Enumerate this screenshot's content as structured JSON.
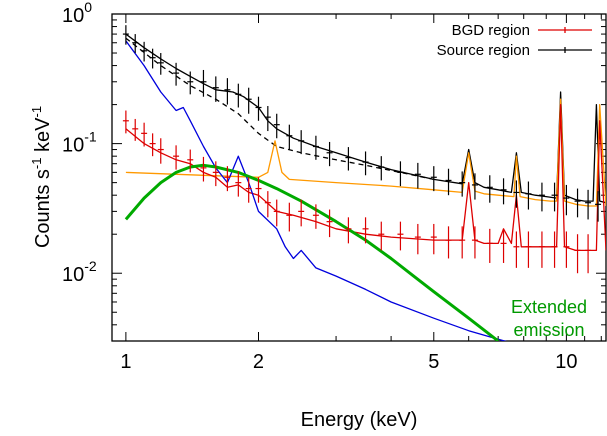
{
  "chart_data": {
    "type": "line",
    "xlabel": "Energy (keV)",
    "ylabel": "Counts s-1 keV-1",
    "xscale": "log",
    "yscale": "log",
    "xlim": [
      0.93,
      12.3
    ],
    "ylim": [
      0.003,
      1.0
    ],
    "x_ticks": [
      {
        "value": 1,
        "label": "1"
      },
      {
        "value": 2,
        "label": "2"
      },
      {
        "value": 5,
        "label": "5"
      },
      {
        "value": 10,
        "label": "10"
      }
    ],
    "y_ticks": [
      {
        "value": 1.0,
        "base": "10",
        "exp": "0"
      },
      {
        "value": 0.1,
        "base": "10",
        "exp": "-1"
      },
      {
        "value": 0.01,
        "base": "10",
        "exp": "-2"
      }
    ],
    "legend": {
      "placement": "top-right",
      "entries": [
        {
          "label": "BGD region",
          "color": "#dd0000"
        },
        {
          "label": "Source region",
          "color": "#000000"
        }
      ]
    },
    "annotation": {
      "lines": [
        "Extended",
        "emission"
      ],
      "color": "#009900"
    },
    "series": [
      {
        "name": "Source region",
        "color": "#000000",
        "style": "points",
        "x": [
          1.0,
          1.05,
          1.1,
          1.15,
          1.2,
          1.3,
          1.4,
          1.5,
          1.6,
          1.7,
          1.8,
          1.9,
          2.0,
          2.1,
          2.2,
          2.35,
          2.5,
          2.7,
          2.9,
          3.2,
          3.5,
          3.8,
          4.2,
          4.6,
          5.0,
          5.4,
          5.8,
          6.2,
          6.7,
          7.2,
          7.7,
          8.2,
          8.8,
          9.4,
          10.0,
          10.6,
          11.2,
          11.8
        ],
        "y": [
          0.7,
          0.6,
          0.52,
          0.46,
          0.42,
          0.35,
          0.3,
          0.3,
          0.27,
          0.26,
          0.24,
          0.22,
          0.19,
          0.16,
          0.14,
          0.115,
          0.105,
          0.095,
          0.085,
          0.078,
          0.072,
          0.066,
          0.06,
          0.058,
          0.055,
          0.052,
          0.05,
          0.048,
          0.046,
          0.044,
          0.042,
          0.041,
          0.04,
          0.04,
          0.038,
          0.036,
          0.035,
          0.034
        ],
        "yerr": [
          0.12,
          0.1,
          0.09,
          0.08,
          0.08,
          0.07,
          0.06,
          0.07,
          0.06,
          0.06,
          0.05,
          0.05,
          0.04,
          0.035,
          0.03,
          0.025,
          0.022,
          0.02,
          0.018,
          0.016,
          0.015,
          0.014,
          0.013,
          0.013,
          0.012,
          0.012,
          0.011,
          0.011,
          0.011,
          0.01,
          0.01,
          0.01,
          0.01,
          0.01,
          0.01,
          0.009,
          0.009,
          0.009
        ]
      },
      {
        "name": "BGD region",
        "color": "#dd0000",
        "style": "points",
        "x": [
          1.0,
          1.05,
          1.1,
          1.15,
          1.2,
          1.3,
          1.4,
          1.5,
          1.6,
          1.7,
          1.8,
          1.9,
          2.0,
          2.1,
          2.2,
          2.35,
          2.5,
          2.7,
          2.9,
          3.2,
          3.5,
          3.8,
          4.2,
          4.6,
          5.0,
          5.4,
          5.8,
          6.2,
          6.7,
          7.2,
          7.7,
          8.2,
          8.8,
          9.4,
          10.0,
          10.6,
          11.2
        ],
        "y": [
          0.15,
          0.13,
          0.12,
          0.1,
          0.09,
          0.08,
          0.075,
          0.065,
          0.06,
          0.055,
          0.05,
          0.045,
          0.045,
          0.035,
          0.03,
          0.028,
          0.03,
          0.028,
          0.025,
          0.022,
          0.022,
          0.02,
          0.02,
          0.019,
          0.019,
          0.018,
          0.018,
          0.018,
          0.017,
          0.017,
          0.016,
          0.016,
          0.016,
          0.016,
          0.016,
          0.015,
          0.015
        ],
        "yerr": [
          0.03,
          0.025,
          0.025,
          0.02,
          0.02,
          0.017,
          0.015,
          0.014,
          0.013,
          0.012,
          0.011,
          0.01,
          0.01,
          0.008,
          0.007,
          0.007,
          0.007,
          0.006,
          0.006,
          0.005,
          0.005,
          0.005,
          0.005,
          0.005,
          0.005,
          0.005,
          0.005,
          0.005,
          0.005,
          0.005,
          0.005,
          0.005,
          0.005,
          0.005,
          0.005,
          0.005,
          0.005
        ]
      },
      {
        "name": "",
        "color": "#000000",
        "style": "line",
        "x": [
          1.0,
          1.1,
          1.2,
          1.3,
          1.4,
          1.5,
          1.6,
          1.75,
          1.85,
          2.0,
          2.1,
          2.2,
          2.4,
          2.7,
          3.0,
          3.5,
          4.0,
          5.0,
          5.8,
          6.0,
          6.2,
          6.5,
          7.0,
          7.5,
          7.7,
          7.9,
          8.5,
          9.0,
          9.5,
          9.7,
          9.9,
          10.5,
          11.0,
          11.5,
          11.7,
          11.9,
          12.3
        ],
        "y": [
          0.7,
          0.55,
          0.45,
          0.38,
          0.33,
          0.29,
          0.26,
          0.25,
          0.23,
          0.19,
          0.15,
          0.13,
          0.11,
          0.095,
          0.085,
          0.072,
          0.063,
          0.053,
          0.049,
          0.09,
          0.05,
          0.046,
          0.044,
          0.042,
          0.085,
          0.042,
          0.04,
          0.039,
          0.038,
          0.25,
          0.04,
          0.037,
          0.036,
          0.036,
          0.2,
          0.036,
          0.035
        ]
      },
      {
        "name": "",
        "color": "#000000",
        "style": "dashed",
        "x": [
          1.0,
          1.2,
          1.4,
          1.6,
          1.8,
          2.0,
          2.2,
          2.5,
          3.0,
          3.5,
          4.0,
          5.0
        ],
        "y": [
          0.65,
          0.4,
          0.28,
          0.22,
          0.17,
          0.12,
          0.095,
          0.085,
          0.075,
          0.068,
          0.062,
          0.053
        ]
      },
      {
        "name": "",
        "color": "#ff9900",
        "style": "line",
        "x": [
          1.0,
          1.5,
          2.0,
          2.1,
          2.18,
          2.26,
          2.35,
          3.0,
          4.0,
          5.0,
          5.8,
          6.0,
          6.2,
          6.5,
          7.0,
          7.6,
          7.7,
          7.85,
          8.5,
          9.2,
          9.5,
          9.7,
          9.9,
          10.5,
          11.2,
          11.7,
          11.9,
          12.3
        ],
        "y": [
          0.06,
          0.057,
          0.055,
          0.06,
          0.105,
          0.06,
          0.053,
          0.05,
          0.047,
          0.044,
          0.042,
          0.085,
          0.043,
          0.041,
          0.04,
          0.039,
          0.08,
          0.039,
          0.037,
          0.036,
          0.036,
          0.22,
          0.036,
          0.034,
          0.033,
          0.033,
          0.2,
          0.033
        ]
      },
      {
        "name": "",
        "color": "#dd0000",
        "style": "line",
        "x": [
          1.0,
          1.1,
          1.2,
          1.3,
          1.4,
          1.5,
          1.6,
          1.7,
          1.8,
          1.9,
          2.0,
          2.2,
          2.4,
          2.7,
          3.0,
          3.5,
          4.0,
          5.0,
          5.8,
          6.0,
          6.2,
          6.5,
          7.0,
          7.2,
          7.5,
          7.7,
          7.9,
          8.5,
          9.2,
          9.5,
          9.7,
          9.9,
          10.5,
          11.2,
          11.7,
          11.9,
          12.3
        ],
        "y": [
          0.13,
          0.1,
          0.085,
          0.075,
          0.07,
          0.06,
          0.055,
          0.046,
          0.048,
          0.042,
          0.04,
          0.03,
          0.028,
          0.025,
          0.022,
          0.02,
          0.019,
          0.018,
          0.018,
          0.05,
          0.018,
          0.017,
          0.017,
          0.022,
          0.017,
          0.04,
          0.016,
          0.016,
          0.016,
          0.016,
          0.2,
          0.016,
          0.015,
          0.015,
          0.015,
          0.15,
          0.015
        ]
      },
      {
        "name": "",
        "color": "#0000dd",
        "style": "line",
        "x": [
          1.0,
          1.1,
          1.2,
          1.3,
          1.35,
          1.4,
          1.5,
          1.6,
          1.7,
          1.8,
          1.9,
          2.0,
          2.2,
          2.3,
          2.4,
          2.5,
          2.7,
          3.0,
          3.5,
          4.0,
          5.0,
          6.0,
          7.0,
          7.5
        ],
        "y": [
          0.62,
          0.4,
          0.25,
          0.18,
          0.19,
          0.15,
          0.095,
          0.065,
          0.05,
          0.08,
          0.05,
          0.03,
          0.022,
          0.016,
          0.013,
          0.015,
          0.011,
          0.0095,
          0.0075,
          0.006,
          0.0045,
          0.0036,
          0.0031,
          0.0029
        ]
      },
      {
        "name": "",
        "color": "#00aa00",
        "style": "thick",
        "x": [
          1.0,
          1.1,
          1.2,
          1.3,
          1.4,
          1.5,
          1.6,
          1.8,
          2.0,
          2.2,
          2.5,
          3.0,
          3.5,
          4.0,
          4.5,
          5.0,
          6.0,
          7.0
        ],
        "y": [
          0.026,
          0.038,
          0.05,
          0.06,
          0.066,
          0.068,
          0.066,
          0.06,
          0.052,
          0.045,
          0.036,
          0.025,
          0.018,
          0.013,
          0.0095,
          0.0072,
          0.0045,
          0.003
        ]
      }
    ]
  }
}
